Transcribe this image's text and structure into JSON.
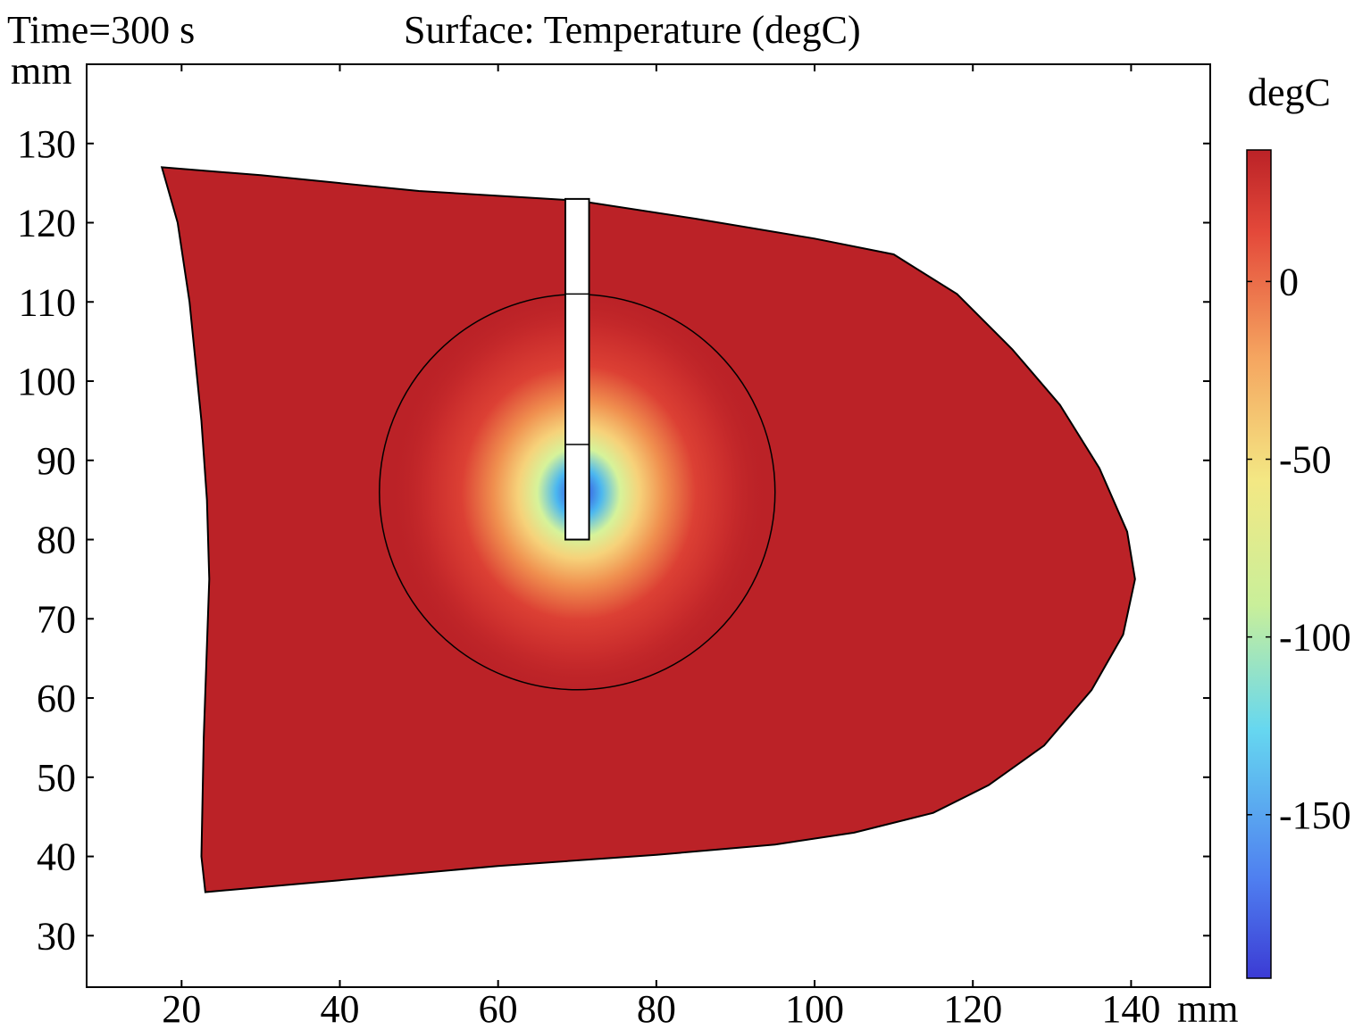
{
  "header": {
    "time_label": "Time=300 s",
    "plot_title": "Surface: Temperature (degC)"
  },
  "chart_data": {
    "type": "heatmap",
    "title": "Surface: Temperature (degC)",
    "time": "Time=300 s",
    "xlabel": "mm",
    "ylabel": "mm",
    "xlim": [
      8,
      150
    ],
    "ylim": [
      23.5,
      140
    ],
    "x_ticks": [
      20,
      40,
      60,
      80,
      100,
      120,
      140
    ],
    "y_ticks": [
      30,
      40,
      50,
      60,
      70,
      80,
      90,
      100,
      110,
      120,
      130
    ],
    "colorbar": {
      "label": "degC",
      "range": [
        -196,
        37
      ],
      "ticks": [
        0,
        -50,
        -100,
        -150
      ],
      "colormap": [
        "#3b3bd4",
        "#4f7ff0",
        "#66d7f0",
        "#c9ef9a",
        "#f3e884",
        "#f5a560",
        "#e4493a",
        "#bb2227"
      ]
    },
    "domain_boundary": [
      [
        17.5,
        127
      ],
      [
        30,
        126
      ],
      [
        50,
        124
      ],
      [
        70,
        122.8
      ],
      [
        85,
        120.5
      ],
      [
        100,
        118
      ],
      [
        110,
        116
      ],
      [
        118,
        111
      ],
      [
        125,
        104
      ],
      [
        131,
        97
      ],
      [
        136,
        89
      ],
      [
        139.5,
        81
      ],
      [
        140.5,
        75
      ],
      [
        139,
        68
      ],
      [
        135,
        61
      ],
      [
        129,
        54
      ],
      [
        122,
        49
      ],
      [
        115,
        45.5
      ],
      [
        105,
        43
      ],
      [
        95,
        41.5
      ],
      [
        80,
        40.2
      ],
      [
        60,
        38.8
      ],
      [
        40,
        37
      ],
      [
        23,
        35.5
      ],
      [
        22.5,
        40
      ],
      [
        22.8,
        55
      ],
      [
        23.5,
        75
      ],
      [
        23.2,
        85
      ],
      [
        22.5,
        95
      ],
      [
        21,
        110
      ],
      [
        19.5,
        120
      ],
      [
        17.5,
        127
      ]
    ],
    "cooling_zone_circle": {
      "center": [
        70,
        86
      ],
      "radius": 25
    },
    "probe": {
      "x_range": [
        68.5,
        71.5
      ],
      "y_range": [
        80,
        123
      ]
    },
    "background_temperature_degC": 37,
    "min_temperature_degC": -196
  }
}
